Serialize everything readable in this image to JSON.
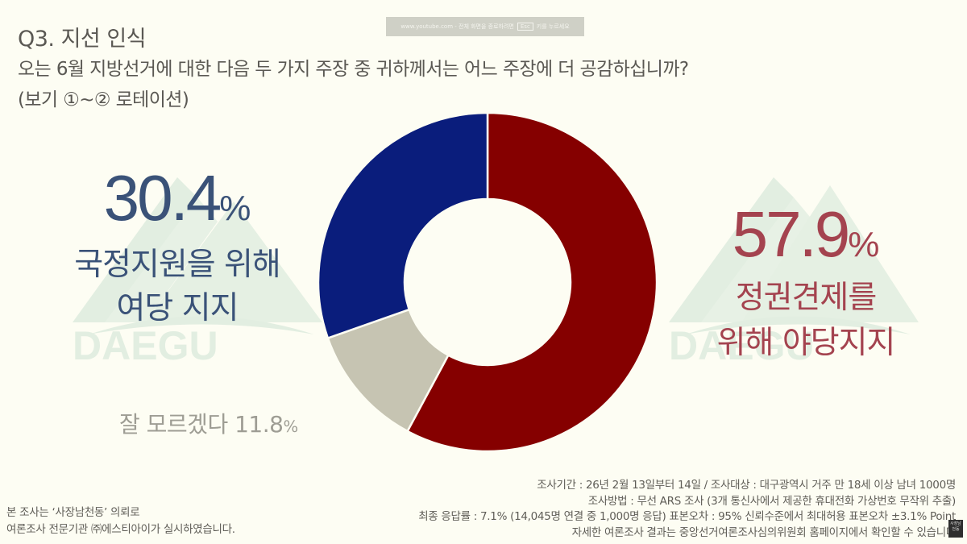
{
  "header": {
    "question_title": "Q3. 지선 인식",
    "question_text": "오는 6월 지방선거에 대한 다음 두 가지 주장 중 귀하께서는 어느 주장에 더 공감하십니까?",
    "rotation_note": "(보기 ①~② 로테이션)"
  },
  "overlay": {
    "youtube_fullscreen_hint_prefix": "www.youtube.com - 전체 화면을 종료하려면",
    "esc_key": "Esc",
    "youtube_fullscreen_hint_suffix": "키를 누르세요"
  },
  "watermark": {
    "text": "DAEGU"
  },
  "labels": {
    "ruling": {
      "value": "30.4",
      "sign": "%",
      "line1": "국정지원을 위해",
      "line2": "여당 지지"
    },
    "opposition": {
      "value": "57.9",
      "sign": "%",
      "line1": "정권견제를",
      "line2": "위해 야당지지"
    },
    "dont_know": {
      "text": "잘 모르겠다 11.8",
      "sign": "%"
    }
  },
  "colors": {
    "background": "#fdfdf3",
    "ruling": "#0a1d7c",
    "opposition": "#850000",
    "dont_know": "#c6c4b2",
    "ruling_text": "#3a5278",
    "opposition_text": "#a4434f",
    "dont_know_text": "#9e9d94",
    "watermark": "#e2eee1"
  },
  "footer": {
    "left": [
      "본 조사는 ‘사장남천동’ 의뢰로",
      "여론조사 전문기관 ㈜에스티아이가 실시하였습니다."
    ],
    "right": [
      "조사기간 : 26년 2월 13일부터 14일 / 조사대상 : 대구광역시 거주 만 18세 이상 남녀 1000명",
      "조사방법 : 무선 ARS 조사 (3개 통신사에서 제공한 휴대전화 가상번호 무작위 추출)",
      "최종 응답률 : 7.1% (14,045명 연결 중 1,000명 응답) 표본오차 :  95% 신뢰수준에서 최대허용 표본오차 ±3.1% Point",
      "자세한 여론조사 결과는 중앙선거여론조사심의위원회 홈페이지에서 확인할 수 있습니다"
    ],
    "channel_badge": "사장남천동"
  },
  "chart_data": {
    "type": "pie",
    "variant": "donut",
    "title": "Q3. 지선 인식",
    "subtitle": "오는 6월 지방선거에 대한 다음 두 가지 주장 중 귀하께서는 어느 주장에 더 공감하십니까?",
    "categories": [
      "정권견제를 위해 야당지지",
      "잘 모르겠다",
      "국정지원을 위해 여당 지지"
    ],
    "values": [
      57.9,
      11.8,
      30.4
    ],
    "colors": [
      "#850000",
      "#c6c4b2",
      "#0a1d7c"
    ],
    "start_angle": "12 o'clock",
    "direction": "clockwise",
    "unit": "%",
    "legend": "none (direct labels)"
  }
}
